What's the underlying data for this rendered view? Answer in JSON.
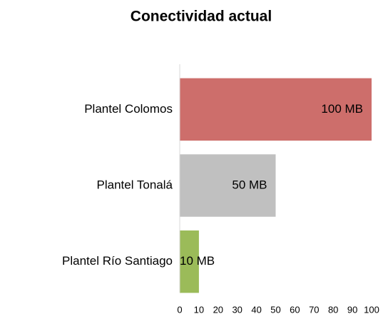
{
  "chart_data": {
    "type": "bar",
    "orientation": "horizontal",
    "title": "Conectividad actual",
    "categories": [
      "Plantel Colomos",
      "Plantel Tonalá",
      "Plantel Río Santiago"
    ],
    "values": [
      100,
      50,
      10
    ],
    "value_labels": [
      "100 MB",
      "50 MB",
      "10 MB"
    ],
    "colors": [
      "#cd6e6b",
      "#c0c0c0",
      "#9bbb59"
    ],
    "xlim": [
      0,
      100
    ],
    "xticks": [
      0,
      10,
      20,
      30,
      40,
      50,
      60,
      70,
      80,
      90,
      100
    ],
    "grid": false
  }
}
